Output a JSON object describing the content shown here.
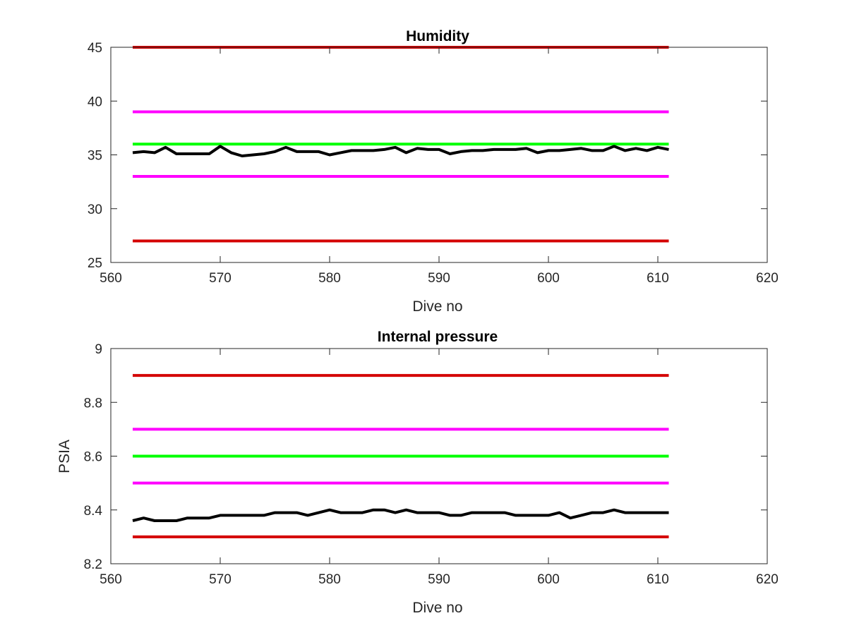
{
  "chart_data": [
    {
      "type": "line",
      "title": "Humidity",
      "xlabel": "Dive no",
      "ylabel": "",
      "xlim": [
        560,
        620
      ],
      "ylim": [
        25,
        45
      ],
      "xticks": [
        560,
        570,
        580,
        590,
        600,
        610,
        620
      ],
      "yticks": [
        25,
        30,
        35,
        40,
        45
      ],
      "grid": false,
      "legend": "none",
      "series": [
        {
          "color": "#d40000",
          "x": [
            562,
            611
          ],
          "values": [
            45,
            45
          ]
        },
        {
          "color": "#ff00ff",
          "x": [
            562,
            611
          ],
          "values": [
            39,
            39
          ]
        },
        {
          "color": "#00ff00",
          "x": [
            562,
            611
          ],
          "values": [
            36,
            36
          ]
        },
        {
          "color": "#ff00ff",
          "x": [
            562,
            611
          ],
          "values": [
            33,
            33
          ]
        },
        {
          "color": "#d40000",
          "x": [
            562,
            611
          ],
          "values": [
            27,
            27
          ]
        },
        {
          "color": "#000000",
          "x": [
            562,
            563,
            564,
            565,
            566,
            567,
            568,
            569,
            570,
            571,
            572,
            573,
            574,
            575,
            576,
            577,
            578,
            579,
            580,
            581,
            582,
            583,
            584,
            585,
            586,
            587,
            588,
            589,
            590,
            591,
            592,
            593,
            594,
            595,
            596,
            597,
            598,
            599,
            600,
            601,
            602,
            603,
            604,
            605,
            606,
            607,
            608,
            609,
            610,
            611
          ],
          "values": [
            35.2,
            35.3,
            35.2,
            35.7,
            35.1,
            35.1,
            35.1,
            35.1,
            35.8,
            35.2,
            34.9,
            35.0,
            35.1,
            35.3,
            35.7,
            35.3,
            35.3,
            35.3,
            35.0,
            35.2,
            35.4,
            35.4,
            35.4,
            35.5,
            35.7,
            35.2,
            35.6,
            35.5,
            35.5,
            35.1,
            35.3,
            35.4,
            35.4,
            35.5,
            35.5,
            35.5,
            35.6,
            35.2,
            35.4,
            35.4,
            35.5,
            35.6,
            35.4,
            35.4,
            35.8,
            35.4,
            35.6,
            35.4,
            35.7,
            35.5
          ]
        }
      ]
    },
    {
      "type": "line",
      "title": "Internal pressure",
      "xlabel": "Dive no",
      "ylabel": "PSIA",
      "xlim": [
        560,
        620
      ],
      "ylim": [
        8.2,
        9.0
      ],
      "xticks": [
        560,
        570,
        580,
        590,
        600,
        610,
        620
      ],
      "yticks": [
        8.2,
        8.4,
        8.6,
        8.8,
        9.0
      ],
      "ytick_labels": [
        "8.2",
        "8.4",
        "8.6",
        "8.8",
        "9"
      ],
      "grid": false,
      "legend": "none",
      "series": [
        {
          "color": "#d40000",
          "x": [
            562,
            611
          ],
          "values": [
            8.9,
            8.9
          ]
        },
        {
          "color": "#ff00ff",
          "x": [
            562,
            611
          ],
          "values": [
            8.7,
            8.7
          ]
        },
        {
          "color": "#00ff00",
          "x": [
            562,
            611
          ],
          "values": [
            8.6,
            8.6
          ]
        },
        {
          "color": "#ff00ff",
          "x": [
            562,
            611
          ],
          "values": [
            8.5,
            8.5
          ]
        },
        {
          "color": "#d40000",
          "x": [
            562,
            611
          ],
          "values": [
            8.3,
            8.3
          ]
        },
        {
          "color": "#000000",
          "x": [
            562,
            563,
            564,
            565,
            566,
            567,
            568,
            569,
            570,
            571,
            572,
            573,
            574,
            575,
            576,
            577,
            578,
            579,
            580,
            581,
            582,
            583,
            584,
            585,
            586,
            587,
            588,
            589,
            590,
            591,
            592,
            593,
            594,
            595,
            596,
            597,
            598,
            599,
            600,
            601,
            602,
            603,
            604,
            605,
            606,
            607,
            608,
            609,
            610,
            611
          ],
          "values": [
            8.36,
            8.37,
            8.36,
            8.36,
            8.36,
            8.37,
            8.37,
            8.37,
            8.38,
            8.38,
            8.38,
            8.38,
            8.38,
            8.39,
            8.39,
            8.39,
            8.38,
            8.39,
            8.4,
            8.39,
            8.39,
            8.39,
            8.4,
            8.4,
            8.39,
            8.4,
            8.39,
            8.39,
            8.39,
            8.38,
            8.38,
            8.39,
            8.39,
            8.39,
            8.39,
            8.38,
            8.38,
            8.38,
            8.38,
            8.39,
            8.37,
            8.38,
            8.39,
            8.39,
            8.4,
            8.39,
            8.39,
            8.39,
            8.39,
            8.39
          ]
        }
      ]
    }
  ]
}
